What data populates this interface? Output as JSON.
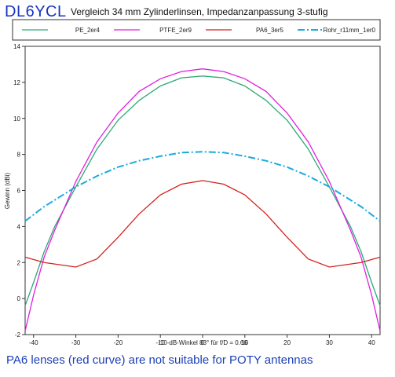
{
  "header": {
    "brand": "DL6YCL",
    "title": "Vergleich 34 mm Zylinderlinsen, Impedanzanpassung 3-stufig"
  },
  "caption": "PA6 lenses (red curve) are not suitable for POTY antennas",
  "chart_data": {
    "type": "line",
    "xlabel": "-10-dB-Winkel 83° für f/D = 0.66",
    "ylabel": "Gewinn (dBi)",
    "xlim": [
      -42,
      42
    ],
    "ylim": [
      -2,
      14
    ],
    "xticks": [
      -40,
      -30,
      -20,
      -10,
      0,
      10,
      20,
      30,
      40
    ],
    "yticks": [
      -2,
      0,
      2,
      4,
      6,
      8,
      10,
      12,
      14
    ],
    "grid": false,
    "legend_position": "top",
    "series": [
      {
        "name": "PE_2er4",
        "color": "#2ea876",
        "style": "solid",
        "x": [
          -42,
          -40,
          -37.5,
          -35,
          -30,
          -25,
          -20,
          -15,
          -10,
          -5,
          0,
          5,
          10,
          15,
          20,
          25,
          30,
          35,
          37.5,
          40,
          42
        ],
        "y": [
          -0.4,
          0.9,
          2.6,
          4.0,
          6.2,
          8.3,
          9.9,
          11.0,
          11.8,
          12.25,
          12.35,
          12.25,
          11.8,
          11.0,
          9.9,
          8.3,
          6.2,
          4.0,
          2.6,
          0.9,
          -0.4
        ]
      },
      {
        "name": "PTFE_2er9",
        "color": "#e01ee0",
        "style": "solid",
        "x": [
          -42,
          -40,
          -37.5,
          -35,
          -30,
          -25,
          -20,
          -15,
          -10,
          -5,
          0,
          5,
          10,
          15,
          20,
          25,
          30,
          35,
          37.5,
          40,
          42
        ],
        "y": [
          -1.8,
          0.2,
          2.3,
          3.8,
          6.5,
          8.7,
          10.3,
          11.5,
          12.2,
          12.6,
          12.75,
          12.6,
          12.2,
          11.5,
          10.3,
          8.7,
          6.5,
          3.8,
          2.3,
          0.2,
          -1.8
        ]
      },
      {
        "name": "PA6_3er5",
        "color": "#d4221e",
        "style": "solid",
        "x": [
          -42,
          -37.5,
          -30,
          -25,
          -20,
          -15,
          -10,
          -5,
          0,
          5,
          10,
          15,
          20,
          25,
          30,
          37.5,
          42
        ],
        "y": [
          2.3,
          2.0,
          1.75,
          2.2,
          3.4,
          4.7,
          5.75,
          6.35,
          6.55,
          6.35,
          5.75,
          4.7,
          3.4,
          2.2,
          1.75,
          2.0,
          2.3
        ]
      },
      {
        "name": "Rohr_r11mm_1er0",
        "color": "#1aaadc",
        "style": "dashdot",
        "x": [
          -42,
          -37.5,
          -30,
          -25,
          -20,
          -15,
          -10,
          -5,
          0,
          5,
          10,
          15,
          20,
          25,
          30,
          37.5,
          42
        ],
        "y": [
          4.3,
          5.1,
          6.2,
          6.8,
          7.3,
          7.65,
          7.9,
          8.1,
          8.15,
          8.1,
          7.9,
          7.65,
          7.3,
          6.8,
          6.2,
          5.1,
          4.3
        ]
      }
    ]
  }
}
